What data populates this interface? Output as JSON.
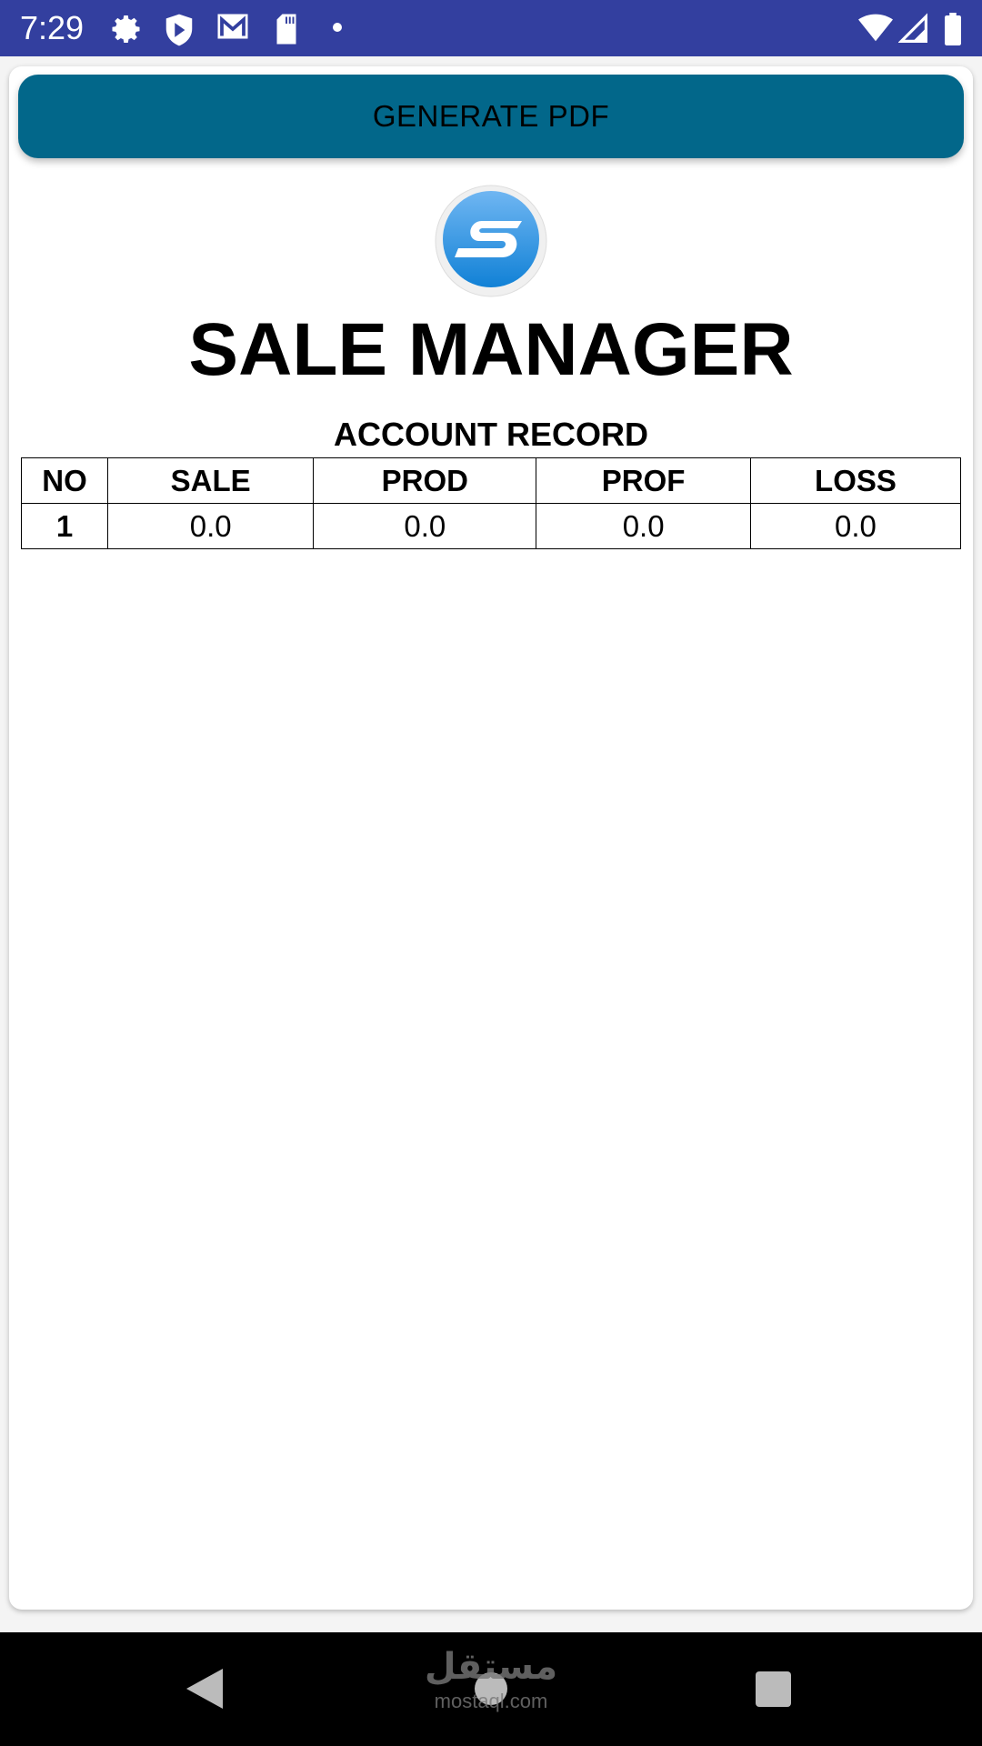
{
  "status_bar": {
    "time": "7:29",
    "icons": [
      "settings-icon",
      "shield-play-icon",
      "gmail-icon",
      "sd-card-icon",
      "dot-icon",
      "wifi-icon",
      "signal-icon",
      "battery-icon"
    ],
    "color": "#333f9f"
  },
  "toolbar": {
    "generate_label": "GENERATE PDF",
    "button_color": "#02678a"
  },
  "header": {
    "title": "SALE MANAGER",
    "subtitle": "ACCOUNT RECORD"
  },
  "table": {
    "columns": [
      "NO",
      "SALE",
      "PROD",
      "PROF",
      "LOSS"
    ],
    "rows": [
      [
        "1",
        "0.0",
        "0.0",
        "0.0",
        "0.0"
      ]
    ]
  },
  "watermark": {
    "text": "mostaql.com"
  }
}
